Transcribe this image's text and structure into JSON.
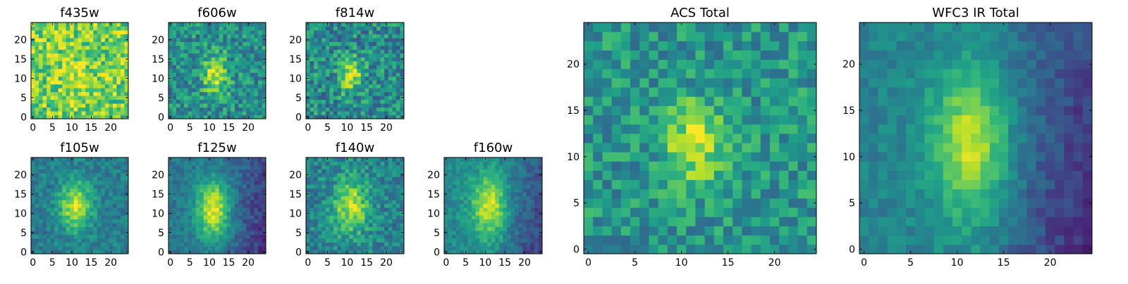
{
  "chart_data": [
    {
      "type": "heatmap",
      "title": "f435w",
      "colormap": "viridis",
      "grid_shape": [
        25,
        25
      ],
      "origin": "lower",
      "xlim": [
        -0.5,
        24.5
      ],
      "ylim": [
        -0.5,
        24.5
      ],
      "xticks": [
        0,
        5,
        10,
        15,
        20
      ],
      "yticks": [
        0,
        5,
        10,
        15,
        20
      ],
      "xtick_labels": [
        "0",
        "5",
        "10",
        "15",
        "20"
      ],
      "ytick_labels": [
        "0",
        "5",
        "10",
        "15",
        "20"
      ],
      "peak": [
        11,
        11
      ],
      "sigma_x": 3.0,
      "sigma_y": 5.0,
      "amplitude": 0.12,
      "background": 0.78,
      "noise": 0.22,
      "gradient": 0.0,
      "seed": 11
    },
    {
      "type": "heatmap",
      "title": "f606w",
      "colormap": "viridis",
      "grid_shape": [
        25,
        25
      ],
      "origin": "lower",
      "xlim": [
        -0.5,
        24.5
      ],
      "ylim": [
        -0.5,
        24.5
      ],
      "xticks": [
        0,
        5,
        10,
        15,
        20
      ],
      "yticks": [
        0,
        5,
        10,
        15,
        20
      ],
      "xtick_labels": [
        "0",
        "5",
        "10",
        "15",
        "20"
      ],
      "ytick_labels": [
        "0",
        "5",
        "10",
        "15",
        "20"
      ],
      "peak": [
        11.5,
        11
      ],
      "sigma_x": 2.2,
      "sigma_y": 3.5,
      "amplitude": 0.45,
      "background": 0.5,
      "noise": 0.2,
      "gradient": 0.0,
      "seed": 23
    },
    {
      "type": "heatmap",
      "title": "f814w",
      "colormap": "viridis",
      "grid_shape": [
        25,
        25
      ],
      "origin": "lower",
      "xlim": [
        -0.5,
        24.5
      ],
      "ylim": [
        -0.5,
        24.5
      ],
      "xticks": [
        0,
        5,
        10,
        15,
        20
      ],
      "yticks": [
        0,
        5,
        10,
        15,
        20
      ],
      "xtick_labels": [
        "0",
        "5",
        "10",
        "15",
        "20"
      ],
      "ytick_labels": [
        "0",
        "5",
        "10",
        "15",
        "20"
      ],
      "peak": [
        11,
        11
      ],
      "sigma_x": 2.0,
      "sigma_y": 3.0,
      "amplitude": 0.45,
      "background": 0.48,
      "noise": 0.22,
      "gradient": 0.0,
      "seed": 37
    },
    {
      "type": "heatmap",
      "title": "f105w",
      "colormap": "viridis",
      "grid_shape": [
        25,
        25
      ],
      "origin": "lower",
      "xlim": [
        -0.5,
        24.5
      ],
      "ylim": [
        -0.5,
        24.5
      ],
      "xticks": [
        0,
        5,
        10,
        15,
        20
      ],
      "yticks": [
        0,
        5,
        10,
        15,
        20
      ],
      "xtick_labels": [
        "0",
        "5",
        "10",
        "15",
        "20"
      ],
      "ytick_labels": [
        "0",
        "5",
        "10",
        "15",
        "20"
      ],
      "peak": [
        11,
        12
      ],
      "sigma_x": 3.0,
      "sigma_y": 4.5,
      "amplitude": 0.5,
      "background": 0.42,
      "noise": 0.12,
      "gradient": 0.0,
      "seed": 41
    },
    {
      "type": "heatmap",
      "title": "f125w",
      "colormap": "viridis",
      "grid_shape": [
        25,
        25
      ],
      "origin": "lower",
      "xlim": [
        -0.5,
        24.5
      ],
      "ylim": [
        -0.5,
        24.5
      ],
      "xticks": [
        0,
        5,
        10,
        15,
        20
      ],
      "yticks": [
        0,
        5,
        10,
        15,
        20
      ],
      "xtick_labels": [
        "0",
        "5",
        "10",
        "15",
        "20"
      ],
      "ytick_labels": [
        "0",
        "5",
        "10",
        "15",
        "20"
      ],
      "peak": [
        11,
        11
      ],
      "sigma_x": 3.0,
      "sigma_y": 5.5,
      "amplitude": 0.55,
      "background": 0.4,
      "noise": 0.1,
      "gradient": 0.25,
      "seed": 53
    },
    {
      "type": "heatmap",
      "title": "f140w",
      "colormap": "viridis",
      "grid_shape": [
        25,
        25
      ],
      "origin": "lower",
      "xlim": [
        -0.5,
        24.5
      ],
      "ylim": [
        -0.5,
        24.5
      ],
      "xticks": [
        0,
        5,
        10,
        15,
        20
      ],
      "yticks": [
        0,
        5,
        10,
        15,
        20
      ],
      "xtick_labels": [
        "0",
        "5",
        "10",
        "15",
        "20"
      ],
      "ytick_labels": [
        "0",
        "5",
        "10",
        "15",
        "20"
      ],
      "peak": [
        11,
        12
      ],
      "sigma_x": 3.2,
      "sigma_y": 5.0,
      "amplitude": 0.45,
      "background": 0.45,
      "noise": 0.16,
      "gradient": 0.0,
      "seed": 67
    },
    {
      "type": "heatmap",
      "title": "f160w",
      "colormap": "viridis",
      "grid_shape": [
        25,
        25
      ],
      "origin": "lower",
      "xlim": [
        -0.5,
        24.5
      ],
      "ylim": [
        -0.5,
        24.5
      ],
      "xticks": [
        0,
        5,
        10,
        15,
        20
      ],
      "yticks": [
        0,
        5,
        10,
        15,
        20
      ],
      "xtick_labels": [
        "0",
        "5",
        "10",
        "15",
        "20"
      ],
      "ytick_labels": [
        "0",
        "5",
        "10",
        "15",
        "20"
      ],
      "peak": [
        11,
        12
      ],
      "sigma_x": 3.2,
      "sigma_y": 5.5,
      "amplitude": 0.45,
      "background": 0.48,
      "noise": 0.1,
      "gradient": 0.3,
      "seed": 79
    },
    {
      "type": "heatmap",
      "title": "ACS Total",
      "colormap": "viridis",
      "grid_shape": [
        25,
        25
      ],
      "origin": "lower",
      "xlim": [
        -0.5,
        24.5
      ],
      "ylim": [
        -0.5,
        24.5
      ],
      "xticks": [
        0,
        5,
        10,
        15,
        20
      ],
      "yticks": [
        0,
        5,
        10,
        15,
        20
      ],
      "xtick_labels": [
        "0",
        "5",
        "10",
        "15",
        "20"
      ],
      "ytick_labels": [
        "0",
        "5",
        "10",
        "15",
        "20"
      ],
      "peak": [
        11.5,
        11.5
      ],
      "sigma_x": 2.3,
      "sigma_y": 3.0,
      "amplitude": 0.42,
      "background": 0.52,
      "noise": 0.18,
      "gradient": 0.0,
      "seed": 97
    },
    {
      "type": "heatmap",
      "title": "WFC3 IR Total",
      "colormap": "viridis",
      "grid_shape": [
        25,
        25
      ],
      "origin": "lower",
      "xlim": [
        -0.5,
        24.5
      ],
      "ylim": [
        -0.5,
        24.5
      ],
      "xticks": [
        0,
        5,
        10,
        15,
        20
      ],
      "yticks": [
        0,
        5,
        10,
        15,
        20
      ],
      "xtick_labels": [
        "0",
        "5",
        "10",
        "15",
        "20"
      ],
      "ytick_labels": [
        "0",
        "5",
        "10",
        "15",
        "20"
      ],
      "peak": [
        11.5,
        11.5
      ],
      "sigma_x": 3.0,
      "sigma_y": 5.5,
      "amplitude": 0.45,
      "background": 0.45,
      "noise": 0.08,
      "gradient": 0.35,
      "seed": 113
    }
  ]
}
